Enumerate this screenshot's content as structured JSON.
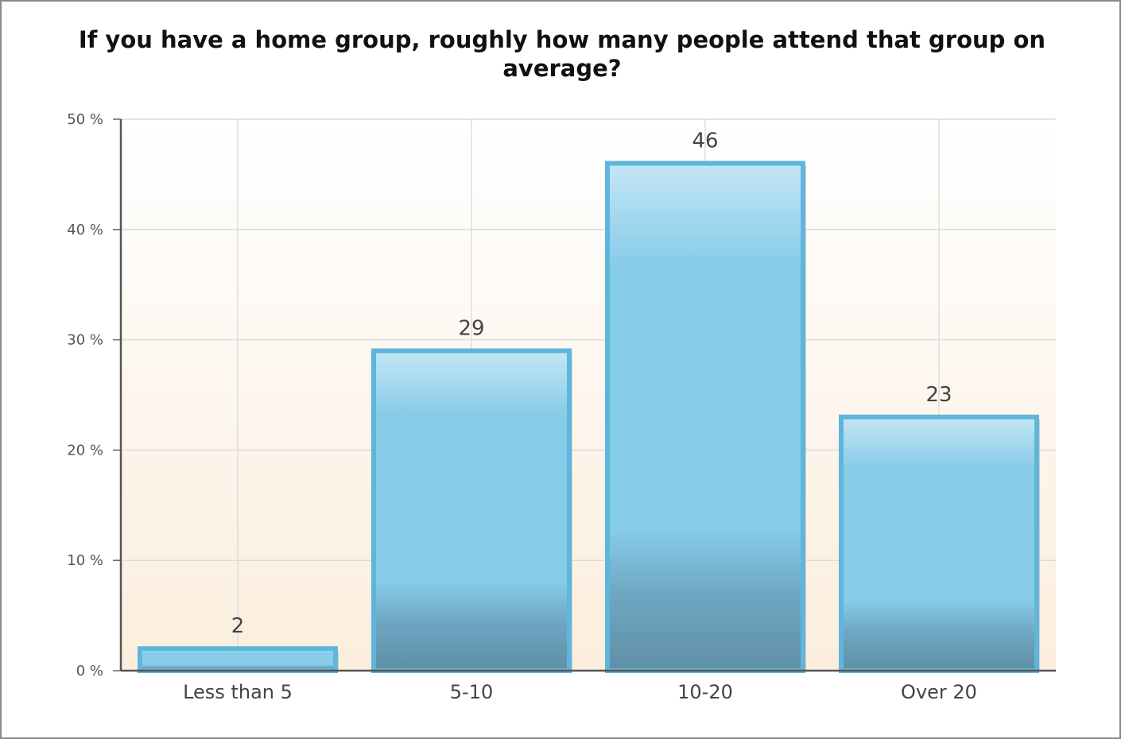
{
  "chart_data": {
    "type": "bar",
    "title": "If you have a home group, roughly how many people attend that group on average?",
    "xlabel": "",
    "ylabel": "",
    "categories": [
      "Less than 5",
      "5-10",
      "10-20",
      "Over 20"
    ],
    "values": [
      2,
      29,
      46,
      23
    ],
    "data_labels": [
      "2",
      "29",
      "46",
      "23"
    ],
    "ylim": [
      0,
      50
    ],
    "yticks": [
      0,
      10,
      20,
      30,
      40,
      50
    ],
    "ytick_labels": [
      "0 %",
      "10 %",
      "20 %",
      "30 %",
      "40 %",
      "50 %"
    ],
    "grid": true,
    "legend": "none",
    "bar_color": "#87cce9",
    "bar_color_dark": "#5f8fa6",
    "bar_border": "#5fb6dc"
  }
}
